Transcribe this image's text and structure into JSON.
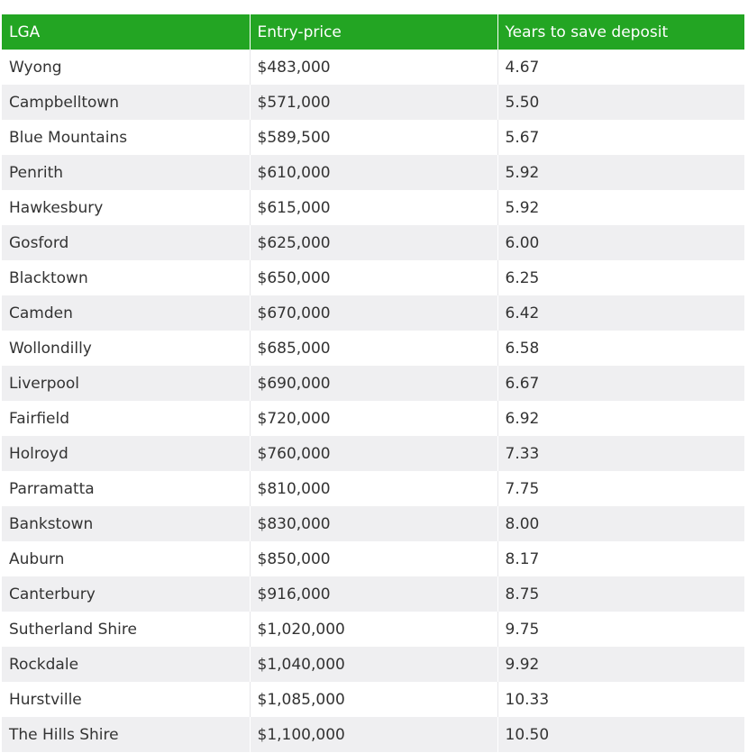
{
  "colors": {
    "header_bg": "#23a523",
    "header_text": "#ffffff",
    "row_alt_bg": "#efeff1",
    "text": "#333333"
  },
  "table": {
    "headers": [
      "LGA",
      "Entry-price",
      "Years to save deposit"
    ],
    "rows": [
      [
        "Wyong",
        "$483,000",
        "4.67"
      ],
      [
        "Campbelltown",
        "$571,000",
        "5.50"
      ],
      [
        "Blue Mountains",
        "$589,500",
        "5.67"
      ],
      [
        "Penrith",
        "$610,000",
        "5.92"
      ],
      [
        "Hawkesbury",
        "$615,000",
        "5.92"
      ],
      [
        "Gosford",
        "$625,000",
        "6.00"
      ],
      [
        "Blacktown",
        "$650,000",
        "6.25"
      ],
      [
        "Camden",
        "$670,000",
        "6.42"
      ],
      [
        "Wollondilly",
        "$685,000",
        "6.58"
      ],
      [
        "Liverpool",
        "$690,000",
        "6.67"
      ],
      [
        "Fairfield",
        "$720,000",
        "6.92"
      ],
      [
        "Holroyd",
        "$760,000",
        "7.33"
      ],
      [
        "Parramatta",
        "$810,000",
        "7.75"
      ],
      [
        "Bankstown",
        "$830,000",
        "8.00"
      ],
      [
        "Auburn",
        "$850,000",
        "8.17"
      ],
      [
        "Canterbury",
        "$916,000",
        "8.75"
      ],
      [
        "Sutherland Shire",
        "$1,020,000",
        "9.75"
      ],
      [
        "Rockdale",
        "$1,040,000",
        "9.92"
      ],
      [
        "Hurstville",
        "$1,085,000",
        "10.33"
      ],
      [
        "The Hills Shire",
        "$1,100,000",
        "10.50"
      ]
    ]
  }
}
